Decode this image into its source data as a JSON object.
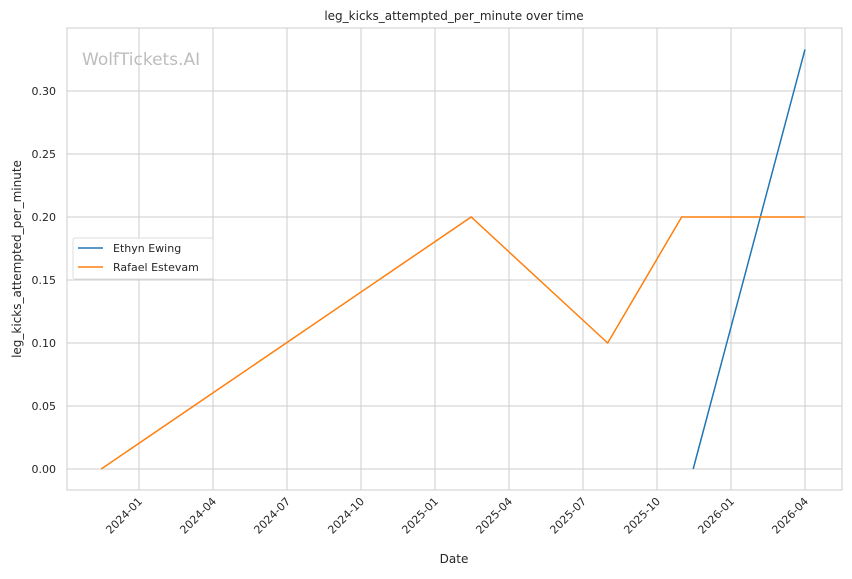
{
  "chart_data": {
    "type": "line",
    "title": "leg_kicks_attempted_per_minute over time",
    "xlabel": "Date",
    "ylabel": "leg_kicks_attempted_per_minute",
    "watermark": "WolfTickets.AI",
    "ylim": [
      -0.017,
      0.35
    ],
    "xlim": [
      "2023-09-20",
      "2026-05-15"
    ],
    "grid": true,
    "legend_position": "center-left",
    "yticks": [
      0.0,
      0.05,
      0.1,
      0.15,
      0.2,
      0.25,
      0.3
    ],
    "ytick_labels": [
      "0.00",
      "0.05",
      "0.10",
      "0.15",
      "0.20",
      "0.25",
      "0.30"
    ],
    "xticks": [
      "2024-01",
      "2024-04",
      "2024-07",
      "2024-10",
      "2025-01",
      "2025-04",
      "2025-07",
      "2025-10",
      "2026-01",
      "2026-04"
    ],
    "series": [
      {
        "name": "Ethyn Ewing",
        "color": "#1f77b4",
        "x": [
          "2025-11-15",
          "2026-04-01"
        ],
        "y": [
          0.0,
          0.333
        ]
      },
      {
        "name": "Rafael Estevam",
        "color": "#ff7f0e",
        "x": [
          "2023-11-15",
          "2025-02-15",
          "2025-08-01",
          "2025-11-01",
          "2026-04-01"
        ],
        "y": [
          0.0,
          0.2,
          0.1,
          0.2,
          0.2
        ]
      }
    ]
  }
}
